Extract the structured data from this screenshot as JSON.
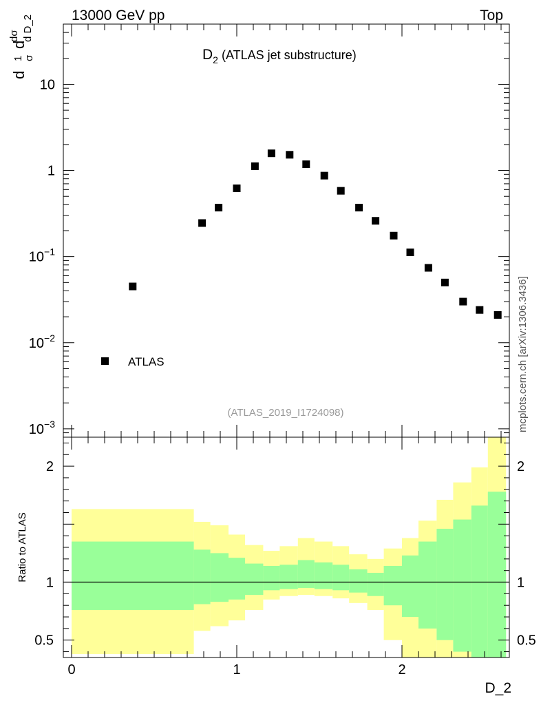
{
  "header": {
    "left": "13000 GeV pp",
    "right": "Top"
  },
  "side_label": "mcplots.cern.ch [arXiv:1306.3436]",
  "chart_data": [
    {
      "type": "scatter",
      "title_main": "D",
      "title_sub": "2",
      "title_rest": " (ATLAS jet substructure)",
      "analysis_id": "(ATLAS_2019_I1724098)",
      "ylabel": "1/σ dσ/d D_2",
      "yscale": "log",
      "ylim": [
        0.0008,
        50
      ],
      "yticks": [
        {
          "value": 0.001,
          "base": "10",
          "exp": "−3"
        },
        {
          "value": 0.01,
          "base": "10",
          "exp": "−2"
        },
        {
          "value": 0.1,
          "base": "10",
          "exp": "−1"
        },
        {
          "value": 1,
          "base": "1",
          "exp": ""
        },
        {
          "value": 10,
          "base": "10",
          "exp": ""
        }
      ],
      "xlim": [
        -0.05,
        2.65
      ],
      "legend": {
        "label": "ATLAS",
        "position": "bottom-left"
      },
      "series": [
        {
          "name": "ATLAS",
          "x": [
            0.37,
            0.79,
            0.89,
            1.0,
            1.11,
            1.21,
            1.32,
            1.42,
            1.53,
            1.63,
            1.74,
            1.84,
            1.95,
            2.05,
            2.16,
            2.26,
            2.37,
            2.47,
            2.58
          ],
          "y": [
            0.045,
            0.245,
            0.37,
            0.62,
            1.12,
            1.58,
            1.52,
            1.18,
            0.87,
            0.58,
            0.37,
            0.26,
            0.175,
            0.112,
            0.074,
            0.05,
            0.03,
            0.024,
            0.021
          ]
        }
      ]
    },
    {
      "type": "area",
      "ylabel": "Ratio to ATLAS",
      "xlabel": "D_2",
      "xlim": [
        -0.05,
        2.65
      ],
      "ylim": [
        0.35,
        2.25
      ],
      "xticks": [
        {
          "value": 0,
          "label": "0"
        },
        {
          "value": 1,
          "label": "1"
        },
        {
          "value": 2,
          "label": "2"
        }
      ],
      "yticks": [
        {
          "value": 0.5,
          "label": "0.5"
        },
        {
          "value": 1,
          "label": "1"
        },
        {
          "value": 2,
          "label": "2"
        }
      ],
      "reference_line": 1,
      "bins": [
        0,
        0.74,
        0.84,
        0.95,
        1.05,
        1.16,
        1.26,
        1.37,
        1.47,
        1.58,
        1.68,
        1.79,
        1.89,
        2.0,
        2.1,
        2.21,
        2.31,
        2.42,
        2.52,
        2.63
      ],
      "bands": {
        "yellow": {
          "color": "#ffff99",
          "low": [
            0.38,
            0.58,
            0.62,
            0.67,
            0.76,
            0.85,
            0.88,
            0.89,
            0.88,
            0.86,
            0.82,
            0.76,
            0.5,
            0.3,
            0.2,
            0.15,
            0.1,
            0.05,
            0.0
          ],
          "high": [
            1.63,
            1.52,
            1.49,
            1.41,
            1.32,
            1.27,
            1.31,
            1.38,
            1.35,
            1.31,
            1.24,
            1.2,
            1.29,
            1.38,
            1.53,
            1.71,
            1.86,
            1.99,
            2.26
          ]
        },
        "green": {
          "color": "#99ff99",
          "low": [
            0.76,
            0.81,
            0.83,
            0.85,
            0.89,
            0.93,
            0.94,
            0.95,
            0.94,
            0.93,
            0.91,
            0.88,
            0.8,
            0.7,
            0.6,
            0.5,
            0.4,
            0.3,
            0.2
          ],
          "high": [
            1.35,
            1.28,
            1.25,
            1.21,
            1.16,
            1.14,
            1.15,
            1.19,
            1.17,
            1.15,
            1.11,
            1.08,
            1.14,
            1.23,
            1.35,
            1.46,
            1.54,
            1.66,
            1.78
          ]
        }
      }
    }
  ]
}
